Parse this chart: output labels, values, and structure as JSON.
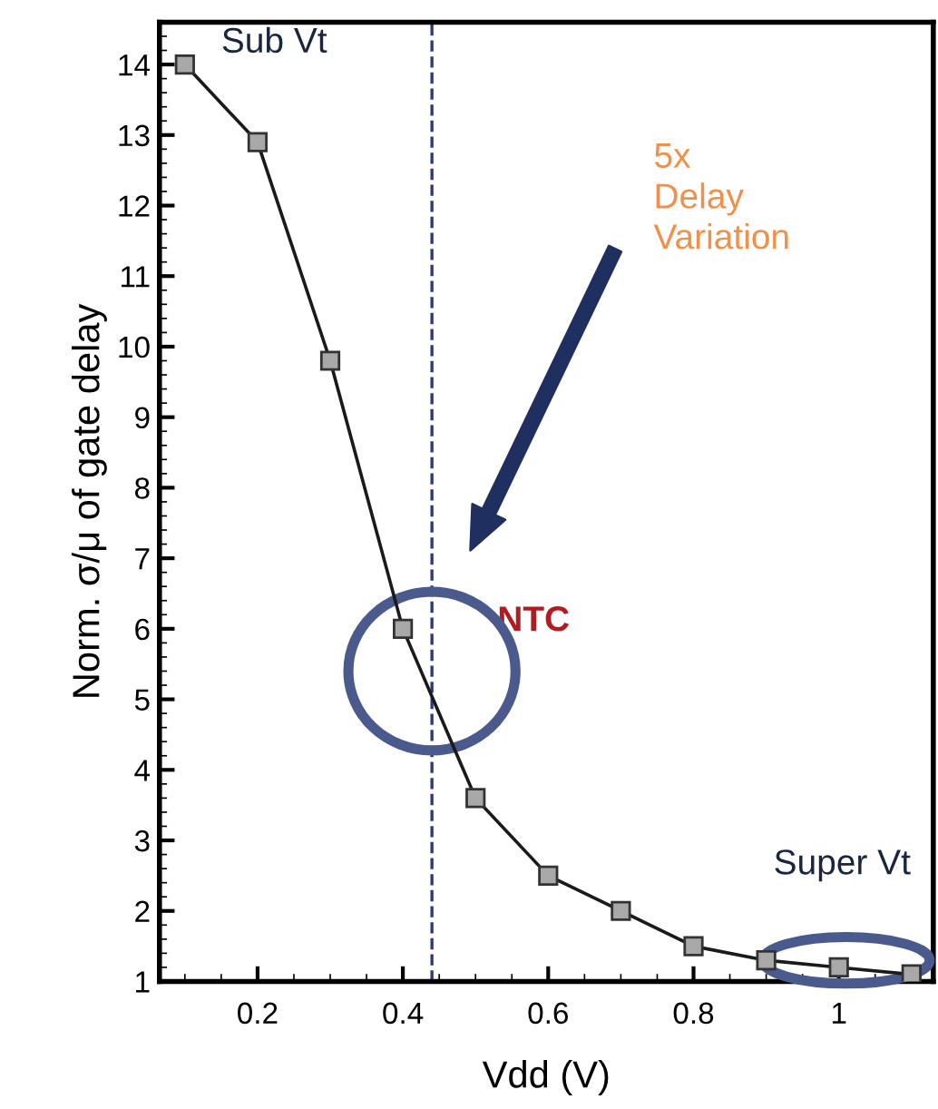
{
  "chart_data": {
    "type": "line",
    "xlabel": "Vdd (V)",
    "ylabel": "Norm. σ/μ of gate delay",
    "x": [
      0.1,
      0.2,
      0.3,
      0.4,
      0.5,
      0.6,
      0.7,
      0.8,
      0.9,
      1.0,
      1.1
    ],
    "series": [
      {
        "color": "#1a1a1a",
        "values": [
          14,
          12.9,
          9.8,
          6.0,
          3.6,
          2.5,
          2.0,
          1.5,
          1.3,
          1.2,
          1.1
        ]
      }
    ],
    "marker": "square",
    "line_style": "solid",
    "grid": false,
    "xlim": [
      0.065,
      1.13
    ],
    "xticks": [
      0.2,
      0.4,
      0.6,
      0.8,
      1
    ],
    "ylim": [
      1,
      14.6
    ],
    "yticks": [
      1,
      2,
      3,
      4,
      5,
      6,
      7,
      8,
      9,
      10,
      11,
      12,
      13,
      14
    ],
    "ref_lines": [
      {
        "axis": "x",
        "value": 0.44,
        "color": "#2a3a7a",
        "line_style": "dashed"
      }
    ],
    "annotations": [
      "Sub Vt",
      "5x\nDelay\nVariation",
      "NTC",
      "Super Vt"
    ]
  }
}
